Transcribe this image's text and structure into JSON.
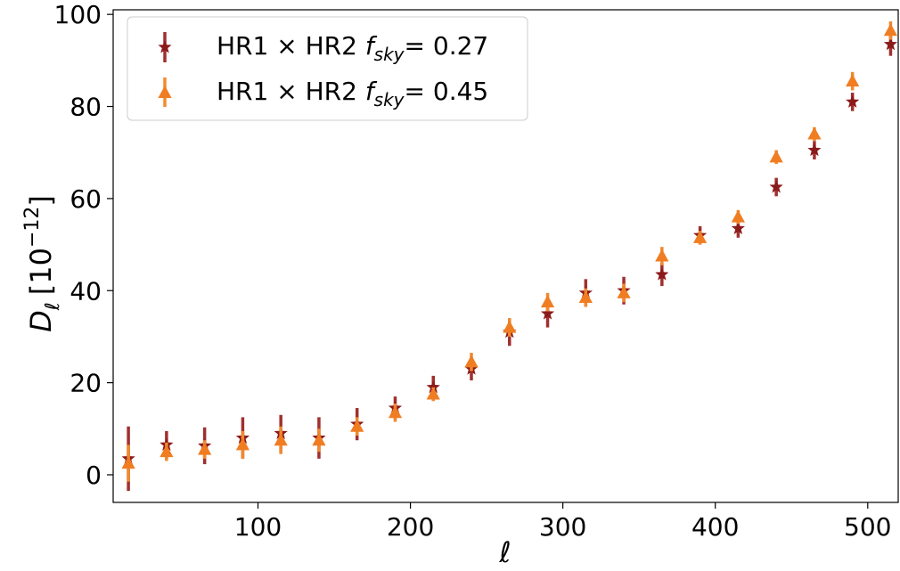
{
  "chart_data": {
    "type": "scatter",
    "title": "",
    "xlabel": "ℓ",
    "ylabel": {
      "symbol": "D",
      "subscript": "ℓ",
      "unit_base": "[10",
      "unit_exp": "−12",
      "unit_close": "]"
    },
    "xlim": [
      5,
      520
    ],
    "ylim": [
      -6,
      101
    ],
    "xticks": [
      100,
      200,
      300,
      400,
      500
    ],
    "yticks": [
      0,
      20,
      40,
      60,
      80,
      100
    ],
    "grid": false,
    "legend_position": "top-left",
    "series": [
      {
        "name": "HR1 × HR2 fsky= 0.27",
        "legend": {
          "prefix": "HR1 × HR2 ",
          "f": "f",
          "sub": "sky",
          "suffix": "= 0.27"
        },
        "marker": "star",
        "color": "#8b1a1a",
        "errorbar_color": "#a03030",
        "x": [
          15,
          40,
          65,
          90,
          115,
          140,
          165,
          190,
          215,
          240,
          265,
          290,
          315,
          340,
          365,
          390,
          415,
          440,
          465,
          490,
          515
        ],
        "y": [
          3.5,
          6.5,
          6.3,
          8.0,
          9.0,
          8.0,
          11.0,
          14.5,
          19.0,
          23.0,
          31.0,
          35.0,
          39.5,
          40.0,
          43.5,
          52.0,
          53.5,
          62.5,
          70.5,
          81.0,
          93.5
        ],
        "err": [
          7.0,
          3.0,
          4.0,
          4.5,
          4.0,
          4.5,
          3.5,
          2.5,
          2.5,
          2.5,
          3.0,
          3.0,
          3.0,
          3.0,
          2.5,
          2.0,
          2.0,
          2.0,
          2.0,
          2.0,
          2.5
        ]
      },
      {
        "name": "HR1 × HR2 fsky= 0.45",
        "legend": {
          "prefix": "HR1 × HR2 ",
          "f": "f",
          "sub": "sky",
          "suffix": "= 0.45"
        },
        "marker": "triangle",
        "color": "#f07d22",
        "errorbar_color": "#f08a30",
        "x": [
          15,
          40,
          65,
          90,
          115,
          140,
          165,
          190,
          215,
          240,
          265,
          290,
          315,
          340,
          365,
          390,
          415,
          440,
          465,
          490,
          515
        ],
        "y": [
          2.5,
          5.0,
          5.5,
          6.5,
          7.5,
          7.5,
          10.5,
          13.5,
          17.5,
          24.5,
          32.0,
          37.5,
          38.5,
          39.5,
          47.5,
          51.5,
          56.0,
          69.0,
          74.0,
          85.5,
          96.5
        ],
        "err": [
          4.0,
          2.0,
          2.0,
          3.0,
          3.0,
          2.5,
          2.0,
          2.0,
          1.5,
          2.0,
          2.0,
          2.0,
          2.0,
          2.0,
          2.0,
          1.5,
          1.5,
          1.5,
          1.5,
          2.0,
          2.0
        ]
      }
    ]
  }
}
